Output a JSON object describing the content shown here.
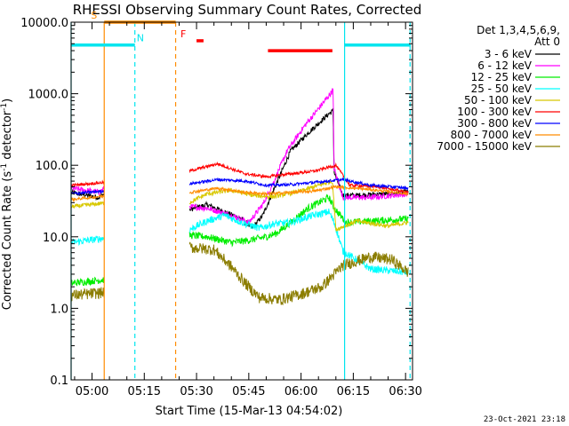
{
  "chart_data": {
    "type": "line",
    "title": "RHESSI Observing Summary Count Rates, Corrected",
    "xlabel": "Start Time (15-Mar-13 04:54:02)",
    "ylabel": "Corrected Count Rate (s⁻¹ detector⁻¹)",
    "ylabel_parts": {
      "main": "Corrected Count Rate (s",
      "sup1": "-1",
      "mid": " detector",
      "sup2": "-1",
      "end": ")"
    },
    "x_range_min": [
      294,
      392
    ],
    "y_scale": "log",
    "ylim": [
      0.1,
      10000
    ],
    "y_ticks": [
      {
        "v": 0.1,
        "label": "0.1"
      },
      {
        "v": 1,
        "label": "1.0"
      },
      {
        "v": 10,
        "label": "10.0"
      },
      {
        "v": 100,
        "label": "100.0"
      },
      {
        "v": 1000,
        "label": "1000.0"
      },
      {
        "v": 10000,
        "label": "10000.0"
      }
    ],
    "x_ticks": [
      {
        "t": 300,
        "label": "05:00"
      },
      {
        "t": 315,
        "label": "05:15"
      },
      {
        "t": 330,
        "label": "05:30"
      },
      {
        "t": 345,
        "label": "05:45"
      },
      {
        "t": 360,
        "label": "06:00"
      },
      {
        "t": 375,
        "label": "06:15"
      },
      {
        "t": 390,
        "label": "06:30"
      }
    ],
    "legend_title": [
      "Det 1,3,4,5,6,9,",
      "Att 0"
    ],
    "series": [
      {
        "name": "3 - 6 keV",
        "color": "#000000"
      },
      {
        "name": "6 - 12 keV",
        "color": "#ff00ff"
      },
      {
        "name": "12 - 25 keV",
        "color": "#00ee00"
      },
      {
        "name": "25 - 50 keV",
        "color": "#00ffff"
      },
      {
        "name": "50 - 100 keV",
        "color": "#d8c800"
      },
      {
        "name": "100 - 300 keV",
        "color": "#ff0000"
      },
      {
        "name": "300 - 800 keV",
        "color": "#0000ff"
      },
      {
        "name": "800 - 7000 keV",
        "color": "#ff8c00"
      },
      {
        "name": "7000 - 15000 keV",
        "color": "#8b7d00"
      }
    ],
    "segments": [
      {
        "t0": 294.1,
        "t1": 303.5
      },
      {
        "t0": 328.0,
        "t1": 390.8
      }
    ],
    "flags": [
      {
        "label": "S",
        "t0": 303.5,
        "t1": 324.0,
        "color": "#ff8c00",
        "y": 10000
      },
      {
        "label": "N",
        "t0": 294.0,
        "t1": 312.3,
        "color": "#00e5ee",
        "y": 4800
      },
      {
        "label": "F",
        "t0": 330.0,
        "t1": 332.0,
        "color": "#ff0000",
        "y": 5500
      },
      {
        "label": "",
        "t0": 350.5,
        "t1": 369.0,
        "color": "#ff0000",
        "y": 4000
      },
      {
        "label": "",
        "t0": 372.5,
        "t1": 391.5,
        "color": "#00e5ee",
        "y": 4800
      }
    ],
    "vlines": [
      {
        "t": 303.5,
        "color": "#ff8c00",
        "dash": false
      },
      {
        "t": 312.3,
        "color": "#00e5ee",
        "dash": true
      },
      {
        "t": 324.0,
        "color": "#ff8c00",
        "dash": true
      },
      {
        "t": 372.5,
        "color": "#00e5ee",
        "dash": false
      },
      {
        "t": 391.3,
        "color": "#00e5ee",
        "dash": true
      },
      {
        "t": 294.0,
        "color": "#00e5ee",
        "dash": false
      }
    ],
    "footer": "23-Oct-2021 23:18"
  }
}
